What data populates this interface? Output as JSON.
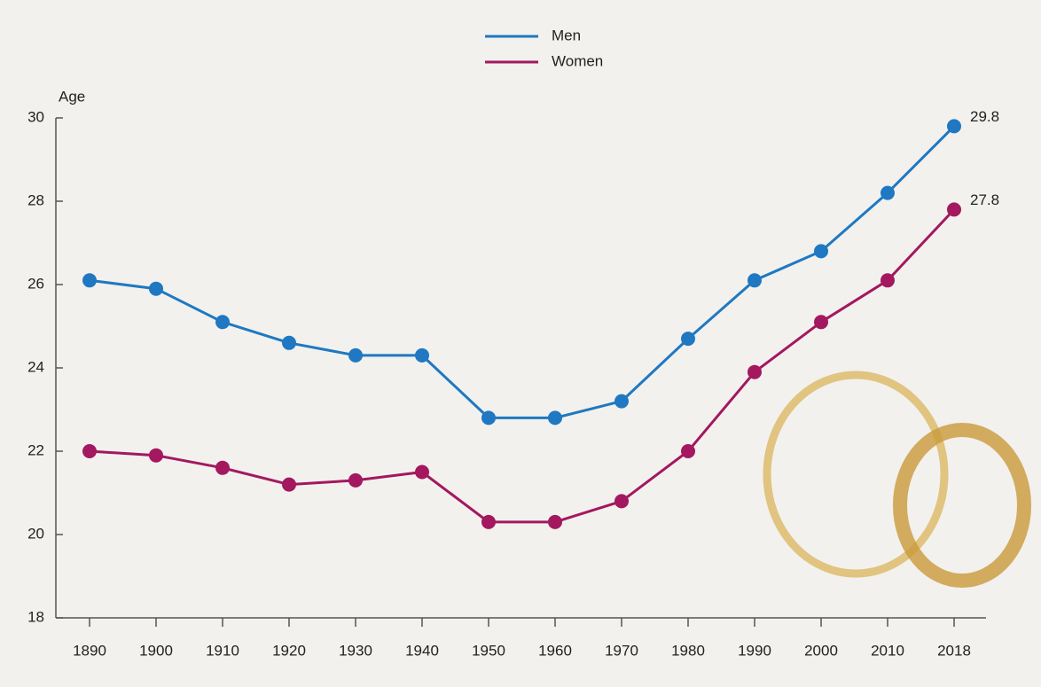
{
  "chart_data": {
    "type": "line",
    "y_label": "Age",
    "categories": [
      "1890",
      "1900",
      "1910",
      "1920",
      "1930",
      "1940",
      "1950",
      "1960",
      "1970",
      "1980",
      "1990",
      "2000",
      "2010",
      "2018"
    ],
    "series": [
      {
        "name": "Men",
        "color": "#1f78c1",
        "values": [
          26.1,
          25.9,
          25.1,
          24.6,
          24.3,
          24.3,
          22.8,
          22.8,
          23.2,
          24.7,
          26.1,
          26.8,
          28.2,
          29.8
        ]
      },
      {
        "name": "Women",
        "color": "#a3185f",
        "values": [
          22.0,
          21.9,
          21.6,
          21.2,
          21.3,
          21.5,
          20.3,
          20.3,
          20.8,
          22.0,
          23.9,
          25.1,
          26.1,
          27.8
        ]
      }
    ],
    "ylim": [
      18,
      30
    ],
    "yticks": [
      18,
      20,
      22,
      24,
      26,
      28,
      30
    ],
    "grid": false,
    "legend": "top"
  }
}
